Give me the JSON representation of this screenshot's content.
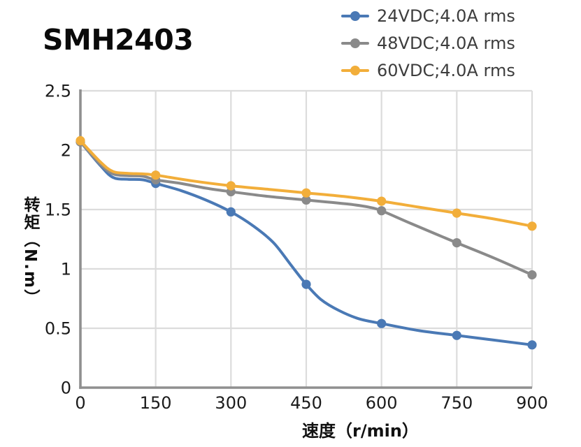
{
  "title": "SMH2403",
  "chart_data": {
    "type": "line",
    "title": "SMH2403",
    "xlabel": "速度（r/min）",
    "ylabel": "转矩（N.m）",
    "x_range": [
      0,
      900
    ],
    "y_range": [
      0,
      2.5
    ],
    "grid": true,
    "legend_position": "top-right",
    "x_ticks": [
      {
        "v": 0,
        "label": "0"
      },
      {
        "v": 150,
        "label": "150"
      },
      {
        "v": 300,
        "label": "300"
      },
      {
        "v": 450,
        "label": "450"
      },
      {
        "v": 600,
        "label": "600"
      },
      {
        "v": 750,
        "label": "750"
      },
      {
        "v": 900,
        "label": "900"
      }
    ],
    "y_ticks": [
      {
        "v": 0,
        "label": "0"
      },
      {
        "v": 0.5,
        "label": "0.5"
      },
      {
        "v": 1,
        "label": "1"
      },
      {
        "v": 1.5,
        "label": "1.5"
      },
      {
        "v": 2,
        "label": "2"
      },
      {
        "v": 2.5,
        "label": "2.5"
      }
    ],
    "categories": [
      0,
      150,
      300,
      450,
      600,
      750,
      900
    ],
    "series": [
      {
        "name": "24VDC;4.0A rms",
        "color": "#4a79b5",
        "values": [
          2.07,
          1.72,
          1.48,
          0.87,
          0.54,
          0.44,
          0.36
        ],
        "curve": [
          [
            0,
            2.07
          ],
          [
            40,
            1.87
          ],
          [
            65,
            1.77
          ],
          [
            95,
            1.755
          ],
          [
            125,
            1.75
          ],
          [
            150,
            1.72
          ],
          [
            200,
            1.66
          ],
          [
            250,
            1.58
          ],
          [
            300,
            1.48
          ],
          [
            345,
            1.36
          ],
          [
            385,
            1.22
          ],
          [
            420,
            1.03
          ],
          [
            450,
            0.87
          ],
          [
            480,
            0.74
          ],
          [
            515,
            0.65
          ],
          [
            555,
            0.58
          ],
          [
            600,
            0.54
          ],
          [
            675,
            0.48
          ],
          [
            750,
            0.44
          ],
          [
            825,
            0.4
          ],
          [
            900,
            0.36
          ]
        ]
      },
      {
        "name": "48VDC;4.0A rms",
        "color": "#8a8a8a",
        "values": [
          2.07,
          1.75,
          1.65,
          1.58,
          1.49,
          1.22,
          0.95
        ],
        "curve": [
          [
            0,
            2.07
          ],
          [
            40,
            1.88
          ],
          [
            65,
            1.8
          ],
          [
            95,
            1.785
          ],
          [
            125,
            1.78
          ],
          [
            150,
            1.75
          ],
          [
            200,
            1.72
          ],
          [
            250,
            1.68
          ],
          [
            300,
            1.65
          ],
          [
            375,
            1.61
          ],
          [
            450,
            1.58
          ],
          [
            500,
            1.56
          ],
          [
            545,
            1.54
          ],
          [
            575,
            1.52
          ],
          [
            600,
            1.49
          ],
          [
            660,
            1.38
          ],
          [
            750,
            1.22
          ],
          [
            825,
            1.09
          ],
          [
            900,
            0.95
          ]
        ]
      },
      {
        "name": "60VDC;4.0A rms",
        "color": "#f2ae3a",
        "values": [
          2.08,
          1.79,
          1.7,
          1.64,
          1.57,
          1.47,
          1.36
        ],
        "curve": [
          [
            0,
            2.08
          ],
          [
            40,
            1.9
          ],
          [
            65,
            1.82
          ],
          [
            95,
            1.805
          ],
          [
            125,
            1.8
          ],
          [
            150,
            1.79
          ],
          [
            225,
            1.74
          ],
          [
            300,
            1.7
          ],
          [
            375,
            1.67
          ],
          [
            450,
            1.64
          ],
          [
            525,
            1.61
          ],
          [
            600,
            1.57
          ],
          [
            675,
            1.52
          ],
          [
            750,
            1.47
          ],
          [
            825,
            1.42
          ],
          [
            900,
            1.36
          ]
        ]
      }
    ],
    "style": {
      "grid_color": "#dcdcdc",
      "axis_color": "#8f8f8f",
      "tick_label_color": "#1b1b1b",
      "legend_text_color": "#3d3d3d",
      "background": "#ffffff"
    }
  }
}
